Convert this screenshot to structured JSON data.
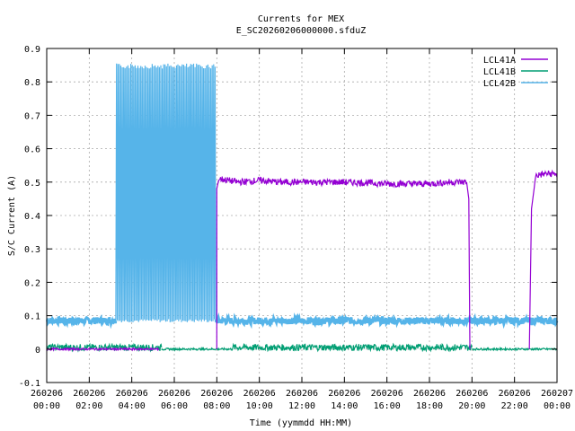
{
  "chart_data": {
    "type": "line",
    "title": "Currents for MEX",
    "subtitle": "E_SC20260206000000.sfduZ",
    "xlabel": "Time (yymmdd HH:MM)",
    "ylabel": "S/C Current (A)",
    "xlim": [
      0,
      24
    ],
    "ylim": [
      -0.1,
      0.9
    ],
    "grid": true,
    "legend_position": "top-right",
    "yticks": [
      -0.1,
      0,
      0.1,
      0.2,
      0.3,
      0.4,
      0.5,
      0.6,
      0.7,
      0.8,
      0.9
    ],
    "ytick_labels": [
      "-0.1",
      "0",
      "0.1",
      "0.2",
      "0.3",
      "0.4",
      "0.5",
      "0.6",
      "0.7",
      "0.8",
      "0.9"
    ],
    "xticks": [
      0,
      2,
      4,
      6,
      8,
      10,
      12,
      14,
      16,
      18,
      20,
      22,
      24
    ],
    "xtick_labels": [
      [
        "260206",
        "00:00"
      ],
      [
        "260206",
        "02:00"
      ],
      [
        "260206",
        "04:00"
      ],
      [
        "260206",
        "06:00"
      ],
      [
        "260206",
        "08:00"
      ],
      [
        "260206",
        "10:00"
      ],
      [
        "260206",
        "12:00"
      ],
      [
        "260206",
        "14:00"
      ],
      [
        "260206",
        "16:00"
      ],
      [
        "260206",
        "18:00"
      ],
      [
        "260206",
        "20:00"
      ],
      [
        "260206",
        "22:00"
      ],
      [
        "260207",
        "00:00"
      ]
    ],
    "series": [
      {
        "name": "LCL41A",
        "color": "#9400d3",
        "segments": [
          {
            "x": [
              0.0,
              5.3
            ],
            "y": [
              0.0,
              0.0
            ]
          },
          {
            "x": [
              8.0,
              8.0,
              8.1,
              9.0,
              10.0,
              11.0,
              12.0,
              13.0,
              14.0,
              15.0,
              16.0,
              17.0,
              18.0,
              19.0,
              19.75,
              19.85,
              19.9
            ],
            "y": [
              0.0,
              0.48,
              0.51,
              0.5,
              0.505,
              0.5,
              0.5,
              0.5,
              0.5,
              0.498,
              0.495,
              0.495,
              0.495,
              0.5,
              0.5,
              0.45,
              0.0
            ]
          },
          {
            "x": [
              22.7,
              22.8,
              23.0,
              23.5,
              24.0
            ],
            "y": [
              0.0,
              0.42,
              0.52,
              0.525,
              0.525
            ]
          }
        ]
      },
      {
        "name": "LCL41B",
        "color": "#009e73",
        "segments": [
          {
            "x": [
              0.0,
              5.4
            ],
            "y": [
              0.005,
              0.005
            ]
          },
          {
            "x": [
              5.4,
              8.7
            ],
            "y": [
              0.0,
              0.0
            ]
          },
          {
            "x": [
              8.7,
              20.0
            ],
            "y": [
              0.005,
              0.005
            ]
          },
          {
            "x": [
              20.0,
              24.0
            ],
            "y": [
              0.0,
              0.0
            ]
          }
        ]
      },
      {
        "name": "LCL42B",
        "color": "#56b4e9",
        "segments": [
          {
            "x": [
              0.0,
              3.25
            ],
            "y": [
              0.085,
              0.085
            ]
          },
          {
            "x": [
              3.25,
              7.95
            ],
            "y": [
              0.08,
              0.855
            ],
            "mode": "switching"
          },
          {
            "x": [
              7.95,
              24.0
            ],
            "y": [
              0.085,
              0.085
            ]
          }
        ]
      }
    ]
  }
}
